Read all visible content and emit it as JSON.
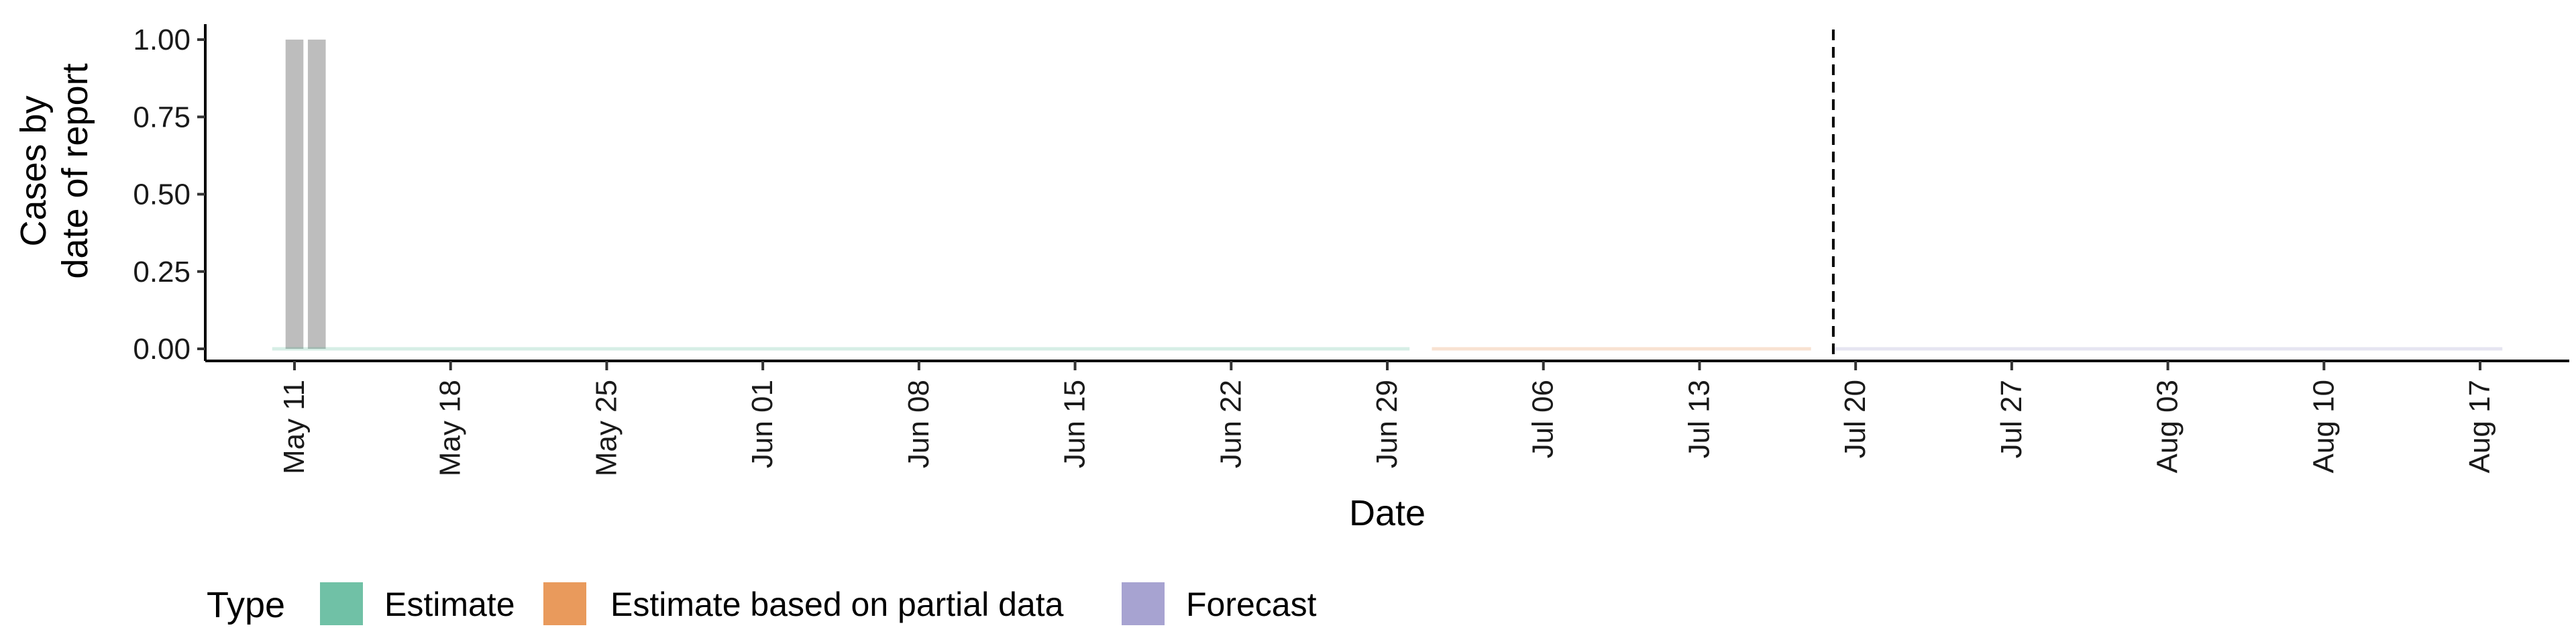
{
  "chart_data": {
    "type": "bar",
    "xlabel": "Date",
    "ylabel_lines": [
      "Cases by",
      "date of report"
    ],
    "x_range": [
      "2025-05-07",
      "2025-08-21"
    ],
    "ylim": [
      0,
      1.05
    ],
    "y_ticks": [
      "0.00",
      "0.25",
      "0.50",
      "0.75",
      "1.00"
    ],
    "x_ticks": [
      {
        "date": "2025-05-11",
        "label": "May 11"
      },
      {
        "date": "2025-05-18",
        "label": "May 18"
      },
      {
        "date": "2025-05-25",
        "label": "May 25"
      },
      {
        "date": "2025-06-01",
        "label": "Jun 01"
      },
      {
        "date": "2025-06-08",
        "label": "Jun 08"
      },
      {
        "date": "2025-06-15",
        "label": "Jun 15"
      },
      {
        "date": "2025-06-22",
        "label": "Jun 22"
      },
      {
        "date": "2025-06-29",
        "label": "Jun 29"
      },
      {
        "date": "2025-07-06",
        "label": "Jul 06"
      },
      {
        "date": "2025-07-13",
        "label": "Jul 13"
      },
      {
        "date": "2025-07-20",
        "label": "Jul 20"
      },
      {
        "date": "2025-07-27",
        "label": "Jul 27"
      },
      {
        "date": "2025-08-03",
        "label": "Aug 03"
      },
      {
        "date": "2025-08-10",
        "label": "Aug 10"
      },
      {
        "date": "2025-08-17",
        "label": "Aug 17"
      }
    ],
    "bars": [
      {
        "date": "2025-05-11",
        "value": 1.0
      },
      {
        "date": "2025-05-12",
        "value": 1.0
      }
    ],
    "bar_color": "#bdbdbd",
    "vline_date": "2025-07-19",
    "estimate_lines": [
      {
        "type": "Estimate",
        "start": "2025-05-10",
        "end": "2025-06-30",
        "value": 0,
        "color": "#1b9e77"
      },
      {
        "type": "Estimate based on partial data",
        "start": "2025-07-01",
        "end": "2025-07-18",
        "value": 0,
        "color": "#d95f02"
      },
      {
        "type": "Forecast",
        "start": "2025-07-19",
        "end": "2025-08-18",
        "value": 0,
        "color": "#7570b3"
      }
    ],
    "legend": {
      "title": "Type",
      "position": "bottom-left",
      "items": [
        {
          "label": "Estimate",
          "fill": "#70c1a6",
          "stroke": "#1b9e77"
        },
        {
          "label": "Estimate based on partial data",
          "fill": "#e99a5c",
          "stroke": "#d95f02"
        },
        {
          "label": "Forecast",
          "fill": "#a7a3d1",
          "stroke": "#7570b3"
        }
      ]
    }
  }
}
